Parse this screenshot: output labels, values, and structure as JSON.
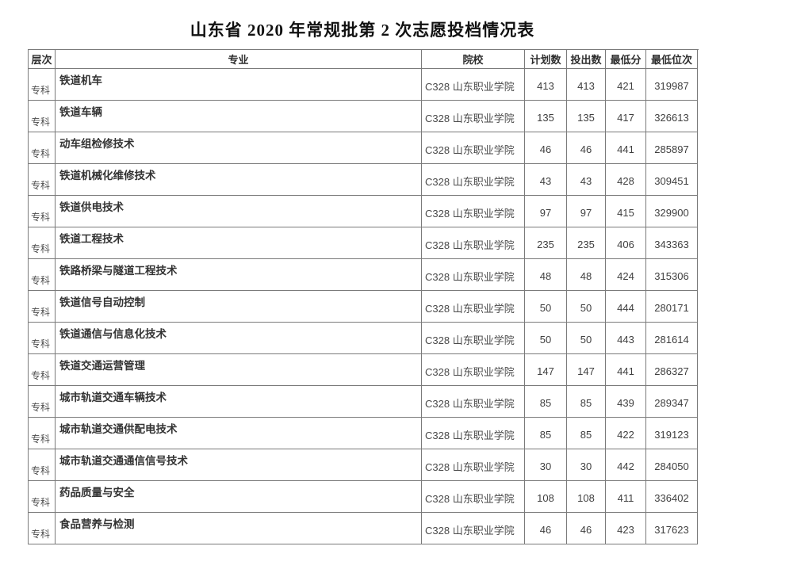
{
  "title": "山东省 2020 年常规批第 2 次志愿投档情况表",
  "table": {
    "headers": {
      "level": "层次",
      "major": "专业",
      "college": "院校",
      "plan": "计划数",
      "cast": "投出数",
      "min_score": "最低分",
      "min_rank": "最低位次"
    },
    "rows": [
      {
        "level": "专科",
        "major": "铁道机车",
        "college": "C328 山东职业学院",
        "plan": "413",
        "cast": "413",
        "min_score": "421",
        "min_rank": "319987"
      },
      {
        "level": "专科",
        "major": "铁道车辆",
        "college": "C328 山东职业学院",
        "plan": "135",
        "cast": "135",
        "min_score": "417",
        "min_rank": "326613"
      },
      {
        "level": "专科",
        "major": "动车组检修技术",
        "college": "C328 山东职业学院",
        "plan": "46",
        "cast": "46",
        "min_score": "441",
        "min_rank": "285897"
      },
      {
        "level": "专科",
        "major": "铁道机械化维修技术",
        "college": "C328 山东职业学院",
        "plan": "43",
        "cast": "43",
        "min_score": "428",
        "min_rank": "309451"
      },
      {
        "level": "专科",
        "major": "铁道供电技术",
        "college": "C328 山东职业学院",
        "plan": "97",
        "cast": "97",
        "min_score": "415",
        "min_rank": "329900"
      },
      {
        "level": "专科",
        "major": "铁道工程技术",
        "college": "C328 山东职业学院",
        "plan": "235",
        "cast": "235",
        "min_score": "406",
        "min_rank": "343363"
      },
      {
        "level": "专科",
        "major": "铁路桥梁与隧道工程技术",
        "college": "C328 山东职业学院",
        "plan": "48",
        "cast": "48",
        "min_score": "424",
        "min_rank": "315306"
      },
      {
        "level": "专科",
        "major": "铁道信号自动控制",
        "college": "C328 山东职业学院",
        "plan": "50",
        "cast": "50",
        "min_score": "444",
        "min_rank": "280171"
      },
      {
        "level": "专科",
        "major": "铁道通信与信息化技术",
        "college": "C328 山东职业学院",
        "plan": "50",
        "cast": "50",
        "min_score": "443",
        "min_rank": "281614"
      },
      {
        "level": "专科",
        "major": "铁道交通运营管理",
        "college": "C328 山东职业学院",
        "plan": "147",
        "cast": "147",
        "min_score": "441",
        "min_rank": "286327"
      },
      {
        "level": "专科",
        "major": "城市轨道交通车辆技术",
        "college": "C328 山东职业学院",
        "plan": "85",
        "cast": "85",
        "min_score": "439",
        "min_rank": "289347"
      },
      {
        "level": "专科",
        "major": "城市轨道交通供配电技术",
        "college": "C328 山东职业学院",
        "plan": "85",
        "cast": "85",
        "min_score": "422",
        "min_rank": "319123"
      },
      {
        "level": "专科",
        "major": "城市轨道交通通信信号技术",
        "college": "C328 山东职业学院",
        "plan": "30",
        "cast": "30",
        "min_score": "442",
        "min_rank": "284050"
      },
      {
        "level": "专科",
        "major": "药品质量与安全",
        "college": "C328 山东职业学院",
        "plan": "108",
        "cast": "108",
        "min_score": "411",
        "min_rank": "336402"
      },
      {
        "level": "专科",
        "major": "食品营养与检测",
        "college": "C328 山东职业学院",
        "plan": "46",
        "cast": "46",
        "min_score": "423",
        "min_rank": "317623"
      }
    ]
  },
  "colors": {
    "border": "#7a7a7a",
    "text": "#3a3a3a",
    "title_text": "#111111",
    "background": "#ffffff"
  }
}
